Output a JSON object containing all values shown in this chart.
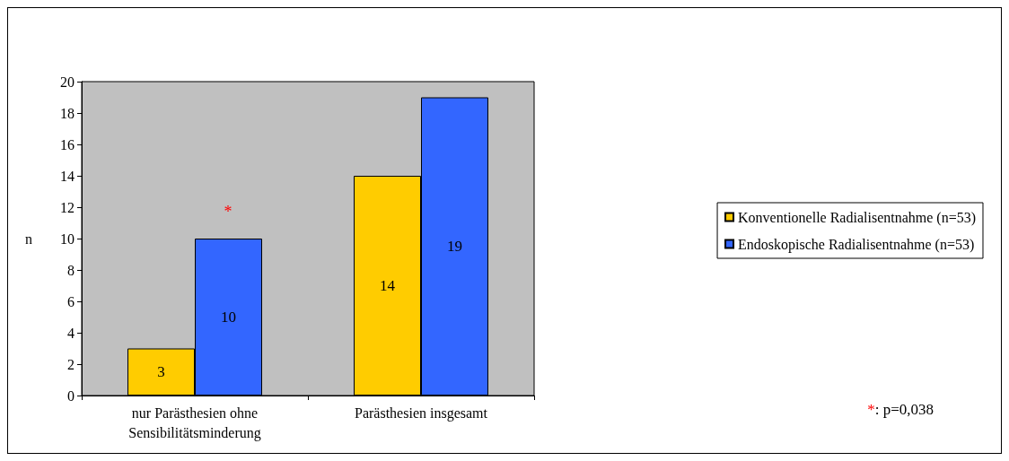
{
  "chart_data": {
    "type": "bar",
    "ylabel": "n",
    "categories": [
      "nur Parästhesien ohne\nSensibilitätsminderung",
      "Parästhesien insgesamt"
    ],
    "series": [
      {
        "name": "Konventionelle Radialisentnahme (n=53)",
        "color": "#ffcc00",
        "values": [
          3,
          14
        ]
      },
      {
        "name": "Endoskopische Radialisentnahme (n=53)",
        "color": "#3366ff",
        "values": [
          10,
          19
        ]
      }
    ],
    "ylim": [
      0,
      20
    ],
    "yticks": [
      0,
      2,
      4,
      6,
      8,
      10,
      12,
      14,
      16,
      18,
      20
    ],
    "grid": false,
    "legend": "right",
    "data_labels": true,
    "annotations": [
      "*",
      "*: p=0,038"
    ]
  }
}
